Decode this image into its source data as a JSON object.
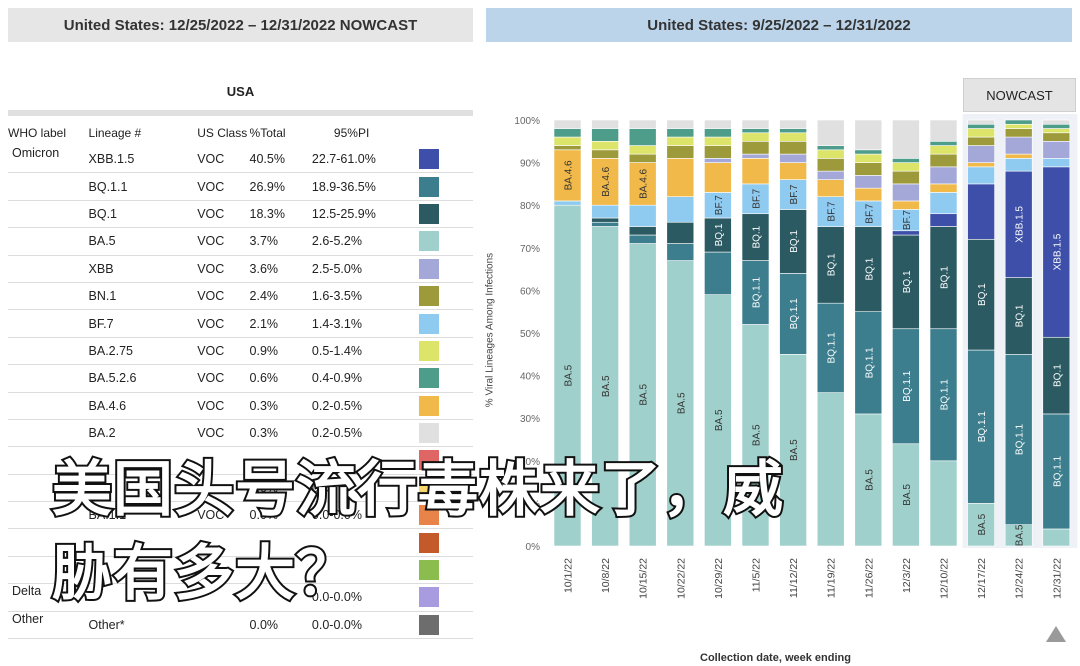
{
  "left_panel": {
    "header": "United States: 12/25/2022 – 12/31/2022 NOWCAST",
    "region": "USA",
    "columns": [
      "WHO label",
      "Lineage #",
      "US Class",
      "%Total",
      "95%PI"
    ],
    "rows": [
      {
        "who": "Omicron",
        "lineage": "XBB.1.5",
        "class": "VOC",
        "pct": "40.5%",
        "pi": "22.7-61.0%",
        "color": "#3d4fa8"
      },
      {
        "who": "",
        "lineage": "BQ.1.1",
        "class": "VOC",
        "pct": "26.9%",
        "pi": "18.9-36.5%",
        "color": "#3c7e8e"
      },
      {
        "who": "",
        "lineage": "BQ.1",
        "class": "VOC",
        "pct": "18.3%",
        "pi": "12.5-25.9%",
        "color": "#2b5a63"
      },
      {
        "who": "",
        "lineage": "BA.5",
        "class": "VOC",
        "pct": "3.7%",
        "pi": "2.6-5.2%",
        "color": "#9fd0cb"
      },
      {
        "who": "",
        "lineage": "XBB",
        "class": "VOC",
        "pct": "3.6%",
        "pi": "2.5-5.0%",
        "color": "#a4a8d8"
      },
      {
        "who": "",
        "lineage": "BN.1",
        "class": "VOC",
        "pct": "2.4%",
        "pi": "1.6-3.5%",
        "color": "#9d9a3c"
      },
      {
        "who": "",
        "lineage": "BF.7",
        "class": "VOC",
        "pct": "2.1%",
        "pi": "1.4-3.1%",
        "color": "#8fcaf0"
      },
      {
        "who": "",
        "lineage": "BA.2.75",
        "class": "VOC",
        "pct": "0.9%",
        "pi": "0.5-1.4%",
        "color": "#dce56a"
      },
      {
        "who": "",
        "lineage": "BA.5.2.6",
        "class": "VOC",
        "pct": "0.6%",
        "pi": "0.4-0.9%",
        "color": "#4e9c8a"
      },
      {
        "who": "",
        "lineage": "BA.4.6",
        "class": "VOC",
        "pct": "0.3%",
        "pi": "0.2-0.5%",
        "color": "#f0b94a"
      },
      {
        "who": "",
        "lineage": "BA.2",
        "class": "VOC",
        "pct": "0.3%",
        "pi": "0.2-0.5%",
        "color": "#e0e0e0"
      },
      {
        "who": "",
        "lineage": "",
        "class": "",
        "pct": "",
        "pi": "",
        "color": "#e06666"
      },
      {
        "who": "",
        "lineage": "",
        "class": "",
        "pct": "0.0%",
        "pi": "0.0",
        "color": "#f5d76e"
      },
      {
        "who": "",
        "lineage": "BA.1.1",
        "class": "VOC",
        "pct": "0.0%",
        "pi": "0.0-0.0%",
        "color": "#e8844a"
      },
      {
        "who": "",
        "lineage": "",
        "class": "",
        "pct": "",
        "pi": "",
        "color": "#c45a2a"
      },
      {
        "who": "",
        "lineage": "",
        "class": "",
        "pct": "",
        "pi": "",
        "color": "#8bbd4e"
      },
      {
        "who": "Delta",
        "lineage": "",
        "class": "",
        "pct": "",
        "pi": "0.0-0.0%",
        "color": "#a99be0"
      },
      {
        "who": "Other",
        "lineage": "Other*",
        "class": "",
        "pct": "0.0%",
        "pi": "0.0-0.0%",
        "color": "#6d6d6d"
      }
    ]
  },
  "right_panel": {
    "header": "United States: 9/25/2022 – 12/31/2022",
    "nowcast_label": "NOWCAST",
    "y_axis_title": "% Viral Lineages Among Infections",
    "x_axis_title": "Collection date, week ending"
  },
  "caption": {
    "line1": "美国头号流行毒株来了，威",
    "line2": "胁有多大？"
  },
  "chart_data": {
    "type": "bar",
    "stacked": true,
    "ylim": [
      0,
      100
    ],
    "y_ticks": [
      "0%",
      "10%",
      "20%",
      "30%",
      "40%",
      "50%",
      "60%",
      "70%",
      "80%",
      "90%",
      "100%"
    ],
    "categories": [
      "10/1/22",
      "10/8/22",
      "10/15/22",
      "10/22/22",
      "10/29/22",
      "11/5/22",
      "11/12/22",
      "11/19/22",
      "11/26/22",
      "12/3/22",
      "12/10/22",
      "12/17/22",
      "12/24/22",
      "12/31/22"
    ],
    "nowcast_from_index": 11,
    "series": [
      {
        "name": "BA.5",
        "color": "#9fd0cb",
        "values": [
          80,
          75,
          71,
          67,
          59,
          52,
          45,
          36,
          31,
          24,
          20,
          10,
          5,
          4
        ]
      },
      {
        "name": "BQ.1.1",
        "color": "#3c7e8e",
        "values": [
          0,
          1,
          2,
          4,
          10,
          15,
          19,
          21,
          24,
          27,
          31,
          36,
          40,
          27
        ]
      },
      {
        "name": "BQ.1",
        "color": "#2b5a63",
        "values": [
          0,
          1,
          2,
          5,
          8,
          11,
          15,
          18,
          20,
          22,
          24,
          26,
          18,
          18
        ]
      },
      {
        "name": "XBB.1.5",
        "color": "#3d4fa8",
        "values": [
          0,
          0,
          0,
          0,
          0,
          0,
          0,
          0,
          0,
          1,
          3,
          13,
          25,
          40
        ]
      },
      {
        "name": "BF.7",
        "color": "#8fcaf0",
        "values": [
          1,
          3,
          5,
          6,
          6,
          7,
          7,
          7,
          6,
          5,
          5,
          4,
          3,
          2
        ]
      },
      {
        "name": "BA.4.6",
        "color": "#f0b94a",
        "values": [
          12,
          11,
          10,
          9,
          7,
          6,
          4,
          4,
          3,
          2,
          2,
          1,
          1,
          0
        ]
      },
      {
        "name": "XBB",
        "color": "#a4a8d8",
        "values": [
          0,
          0,
          0,
          0,
          1,
          1,
          2,
          2,
          3,
          4,
          4,
          4,
          4,
          4
        ]
      },
      {
        "name": "BN.1",
        "color": "#9d9a3c",
        "values": [
          1,
          2,
          2,
          3,
          3,
          3,
          3,
          3,
          3,
          3,
          3,
          2,
          2,
          2
        ]
      },
      {
        "name": "BA.2.75",
        "color": "#dce56a",
        "values": [
          2,
          2,
          2,
          2,
          2,
          2,
          2,
          2,
          2,
          2,
          2,
          2,
          1,
          1
        ]
      },
      {
        "name": "BA.5.2.6",
        "color": "#4e9c8a",
        "values": [
          2,
          3,
          4,
          2,
          2,
          1,
          1,
          1,
          1,
          1,
          1,
          1,
          1,
          1
        ]
      },
      {
        "name": "Other*",
        "color": "#e0e0e0",
        "values": [
          2,
          2,
          2,
          2,
          2,
          2,
          2,
          6,
          7,
          9,
          5,
          1,
          0,
          1
        ]
      }
    ],
    "bar_labels": [
      {
        "bar": 0,
        "series": "BA.5",
        "text": "BA.5"
      },
      {
        "bar": 0,
        "series": "BA.4.6",
        "text": "BA.4.6"
      },
      {
        "bar": 1,
        "series": "BA.5",
        "text": "BA.5"
      },
      {
        "bar": 1,
        "series": "BA.4.6",
        "text": "BA.4.6"
      },
      {
        "bar": 2,
        "series": "BA.5",
        "text": "BA.5"
      },
      {
        "bar": 2,
        "series": "BA.4.6",
        "text": "BA.4.6"
      },
      {
        "bar": 3,
        "series": "BA.5",
        "text": "BA.5"
      },
      {
        "bar": 4,
        "series": "BA.5",
        "text": "BA.5"
      },
      {
        "bar": 4,
        "series": "BQ.1",
        "text": "BQ.1"
      },
      {
        "bar": 4,
        "series": "BF.7",
        "text": "BF.7"
      },
      {
        "bar": 5,
        "series": "BA.5",
        "text": "BA.5"
      },
      {
        "bar": 5,
        "series": "BQ.1.1",
        "text": "BQ.1.1"
      },
      {
        "bar": 5,
        "series": "BQ.1",
        "text": "BQ.1"
      },
      {
        "bar": 5,
        "series": "BF.7",
        "text": "BF.7"
      },
      {
        "bar": 6,
        "series": "BA.5",
        "text": "BA.5"
      },
      {
        "bar": 6,
        "series": "BQ.1.1",
        "text": "BQ.1.1"
      },
      {
        "bar": 6,
        "series": "BQ.1",
        "text": "BQ.1"
      },
      {
        "bar": 6,
        "series": "BF.7",
        "text": "BF.7"
      },
      {
        "bar": 7,
        "series": "BQ.1.1",
        "text": "BQ.1.1"
      },
      {
        "bar": 7,
        "series": "BQ.1",
        "text": "BQ.1"
      },
      {
        "bar": 7,
        "series": "BF.7",
        "text": "BF.7"
      },
      {
        "bar": 8,
        "series": "BA.5",
        "text": "BA.5"
      },
      {
        "bar": 8,
        "series": "BQ.1.1",
        "text": "BQ.1.1"
      },
      {
        "bar": 8,
        "series": "BQ.1",
        "text": "BQ.1"
      },
      {
        "bar": 8,
        "series": "BF.7",
        "text": "BF.7"
      },
      {
        "bar": 9,
        "series": "BA.5",
        "text": "BA.5"
      },
      {
        "bar": 9,
        "series": "BQ.1.1",
        "text": "BQ.1.1"
      },
      {
        "bar": 9,
        "series": "BQ.1",
        "text": "BQ.1"
      },
      {
        "bar": 9,
        "series": "BF.7",
        "text": "BF.7"
      },
      {
        "bar": 10,
        "series": "BQ.1.1",
        "text": "BQ.1.1"
      },
      {
        "bar": 10,
        "series": "BQ.1",
        "text": "BQ.1"
      },
      {
        "bar": 11,
        "series": "BA.5",
        "text": "BA.5"
      },
      {
        "bar": 11,
        "series": "BQ.1.1",
        "text": "BQ.1.1"
      },
      {
        "bar": 11,
        "series": "BQ.1",
        "text": "BQ.1"
      },
      {
        "bar": 12,
        "series": "BA.5",
        "text": "BA.5"
      },
      {
        "bar": 12,
        "series": "BQ.1.1",
        "text": "BQ.1.1"
      },
      {
        "bar": 12,
        "series": "BQ.1",
        "text": "BQ.1"
      },
      {
        "bar": 12,
        "series": "XBB.1.5",
        "text": "XBB.1.5"
      },
      {
        "bar": 13,
        "series": "BQ.1.1",
        "text": "BQ.1.1"
      },
      {
        "bar": 13,
        "series": "BQ.1",
        "text": "BQ.1"
      },
      {
        "bar": 13,
        "series": "XBB.1.5",
        "text": "XBB.1.5"
      }
    ]
  }
}
